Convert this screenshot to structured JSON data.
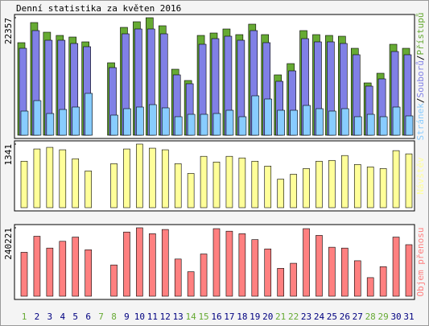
{
  "title": "Denní statistika za květen 2016",
  "chart_data": [
    {
      "type": "bar",
      "ylim": [
        0,
        22357
      ],
      "yticks": [
        22357
      ],
      "series": [
        {
          "name": "Přístupů",
          "color": "#66aa33",
          "values": [
            17610,
            21438,
            19600,
            18988,
            18682,
            17763,
            0,
            13782,
            20519,
            21591,
            22357,
            20826,
            12556,
            10413,
            18988,
            19447,
            20213,
            19141,
            21132,
            19141,
            11485,
            13629,
            19907,
            19141,
            18988,
            18835,
            16538,
            9953,
            11791,
            17304,
            16538
          ]
        },
        {
          "name": "Souborů",
          "color": "#8080e6",
          "values": [
            16538,
            19907,
            18069,
            18069,
            17457,
            16844,
            0,
            12863,
            19294,
            20213,
            20213,
            19294,
            11485,
            9800,
            17304,
            18376,
            18835,
            18069,
            19907,
            17610,
            10260,
            12250,
            18376,
            17763,
            17763,
            17457,
            15313,
            9341,
            10719,
            15926,
            15313
          ]
        },
        {
          "name": "Stránek",
          "color": "#88ccff",
          "values": [
            4594,
            6585,
            4134,
            4900,
            5360,
            7963,
            0,
            3828,
            5053,
            5360,
            5819,
            5206,
            3522,
            3981,
            3981,
            4134,
            4747,
            3522,
            7503,
            6891,
            4747,
            4747,
            5666,
            5053,
            4594,
            5053,
            3522,
            3981,
            3522,
            5360,
            3675
          ]
        }
      ]
    },
    {
      "type": "bar",
      "ylim": [
        0,
        1341
      ],
      "yticks": [
        1341
      ],
      "series": [
        {
          "name": "Návštěv",
          "color": "#ffff99",
          "values": [
            980,
            1238,
            1272,
            1221,
            1032,
            774,
            0,
            928,
            1238,
            1341,
            1255,
            1221,
            928,
            722,
            1083,
            963,
            1083,
            1049,
            980,
            877,
            602,
            705,
            825,
            980,
            997,
            1100,
            911,
            860,
            825,
            1203,
            1135
          ]
        }
      ]
    },
    {
      "type": "bar",
      "ylim": [
        0,
        240221
      ],
      "yticks": [
        240221
      ],
      "categories": [
        "1",
        "2",
        "3",
        "4",
        "5",
        "6",
        "7",
        "8",
        "9",
        "10",
        "11",
        "12",
        "13",
        "14",
        "15",
        "16",
        "17",
        "18",
        "19",
        "20",
        "21",
        "22",
        "23",
        "24",
        "25",
        "26",
        "27",
        "28",
        "29",
        "30",
        "31"
      ],
      "category_colors": [
        "#66aa33",
        "#000080",
        "#000080",
        "#000080",
        "#000080",
        "#000080",
        "#66aa33",
        "#66aa33",
        "#000080",
        "#000080",
        "#000080",
        "#000080",
        "#000080",
        "#66aa33",
        "#66aa33",
        "#000080",
        "#000080",
        "#000080",
        "#000080",
        "#000080",
        "#66aa33",
        "#66aa33",
        "#000080",
        "#000080",
        "#000080",
        "#000080",
        "#000080",
        "#66aa33",
        "#66aa33",
        "#000080",
        "#000080"
      ],
      "series": [
        {
          "name": "Objem přenosu",
          "color": "#ff8080",
          "values": [
            154216,
            210564,
            169043,
            192770,
            207598,
            163113,
            0,
            109730,
            225393,
            240221,
            219461,
            234290,
            130490,
            86005,
            148285,
            237255,
            228358,
            219461,
            198702,
            166078,
            97868,
            115662,
            237255,
            213530,
            172009,
            169043,
            124559,
            65246,
            103800,
            207598,
            180907
          ]
        }
      ]
    }
  ]
}
